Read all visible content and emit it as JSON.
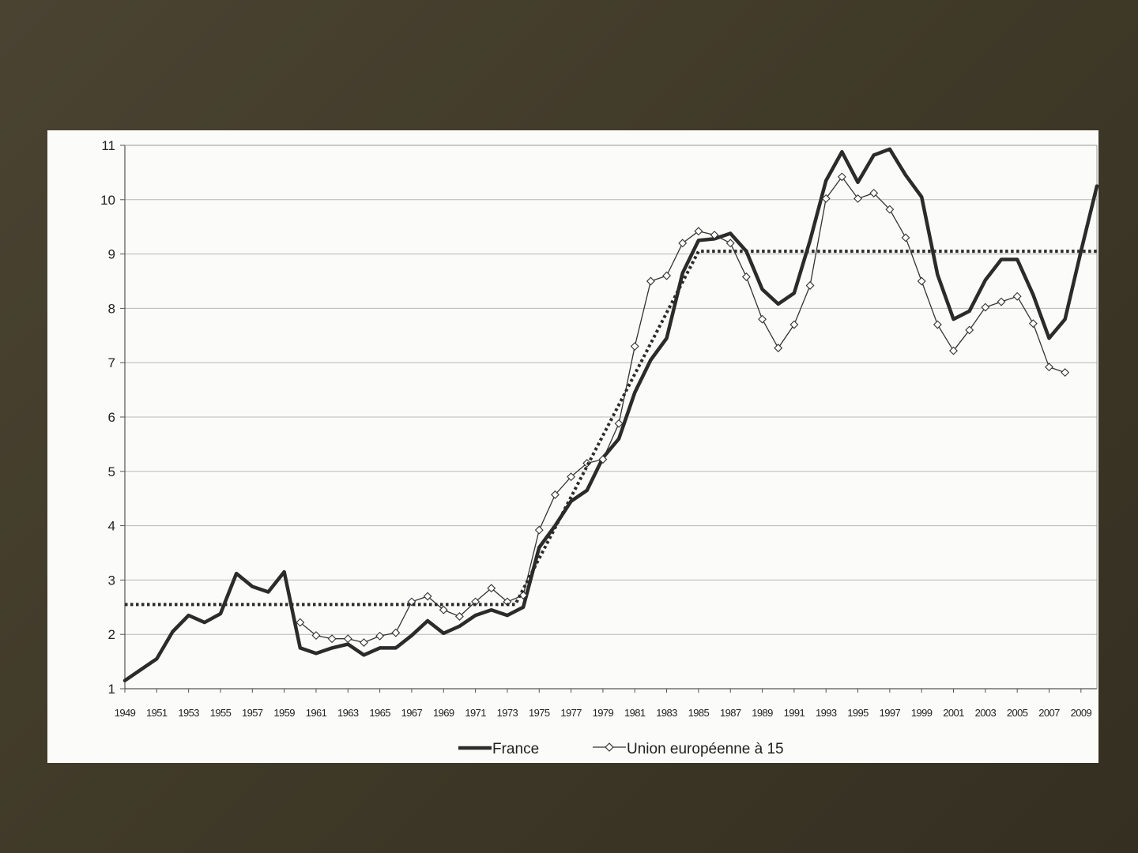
{
  "slide": {
    "background_colors": [
      "#4a4332",
      "#352f22"
    ]
  },
  "chart_data": {
    "type": "line",
    "title": "",
    "xlabel": "",
    "ylabel": "",
    "xlim": [
      1949,
      2010
    ],
    "ylim": [
      1,
      11
    ],
    "yticks": [
      1,
      2,
      3,
      4,
      5,
      6,
      7,
      8,
      9,
      10,
      11
    ],
    "ytick_labels": [
      "1",
      "2",
      "3",
      "4",
      "5",
      "6",
      "7",
      "8",
      "9",
      "10",
      "11"
    ],
    "xtick_labels": [
      "1949",
      "1951",
      "1953",
      "1955",
      "1957",
      "1959",
      "1961",
      "1963",
      "1965",
      "1967",
      "1969",
      "1971",
      "1973",
      "1975",
      "1977",
      "1979",
      "1981",
      "1983",
      "1985",
      "1987",
      "1989",
      "1991",
      "1993",
      "1995",
      "1997",
      "1999",
      "2001",
      "2003",
      "2005",
      "2007",
      "2009"
    ],
    "grid": "horizontal",
    "legend_position": "bottom-center",
    "series": [
      {
        "name": "France",
        "style": "thick-line",
        "color": "#2b2b2b",
        "x": [
          1949,
          1950,
          1951,
          1952,
          1953,
          1954,
          1955,
          1956,
          1957,
          1958,
          1959,
          1960,
          1961,
          1962,
          1963,
          1964,
          1965,
          1966,
          1967,
          1968,
          1969,
          1970,
          1971,
          1972,
          1973,
          1974,
          1975,
          1976,
          1977,
          1978,
          1979,
          1980,
          1981,
          1982,
          1983,
          1984,
          1985,
          1986,
          1987,
          1988,
          1989,
          1990,
          1991,
          1992,
          1993,
          1994,
          1995,
          1996,
          1997,
          1998,
          1999,
          2000,
          2001,
          2002,
          2003,
          2004,
          2005,
          2006,
          2007,
          2008,
          2009,
          2010
        ],
        "values": [
          1.15,
          1.35,
          1.55,
          2.05,
          2.35,
          2.22,
          2.38,
          3.12,
          2.88,
          2.78,
          3.15,
          1.75,
          1.65,
          1.75,
          1.82,
          1.62,
          1.75,
          1.75,
          1.98,
          2.25,
          2.02,
          2.15,
          2.35,
          2.45,
          2.35,
          2.5,
          3.6,
          4.0,
          4.45,
          4.65,
          5.25,
          5.6,
          6.45,
          7.05,
          7.45,
          8.65,
          9.25,
          9.28,
          9.38,
          9.05,
          8.35,
          8.08,
          8.28,
          9.25,
          10.35,
          10.88,
          10.32,
          10.82,
          10.93,
          10.45,
          10.05,
          8.62,
          7.8,
          7.95,
          8.52,
          8.9,
          8.9,
          8.25,
          7.45,
          7.8,
          9.05,
          10.25
        ]
      },
      {
        "name": "Union européenne à 15",
        "style": "thin-line-diamond-markers",
        "color": "#333333",
        "x": [
          1960,
          1961,
          1962,
          1963,
          1964,
          1965,
          1966,
          1967,
          1968,
          1969,
          1970,
          1971,
          1972,
          1973,
          1974,
          1975,
          1976,
          1977,
          1978,
          1979,
          1980,
          1981,
          1982,
          1983,
          1984,
          1985,
          1986,
          1987,
          1988,
          1989,
          1990,
          1991,
          1992,
          1993,
          1994,
          1995,
          1996,
          1997,
          1998,
          1999,
          2000,
          2001,
          2002,
          2003,
          2004,
          2005,
          2006,
          2007,
          2008
        ],
        "values": [
          2.22,
          1.98,
          1.92,
          1.92,
          1.85,
          1.97,
          2.03,
          2.6,
          2.7,
          2.45,
          2.33,
          2.6,
          2.85,
          2.6,
          2.72,
          3.92,
          4.57,
          4.9,
          5.15,
          5.22,
          5.88,
          7.3,
          8.5,
          8.6,
          9.2,
          9.42,
          9.35,
          9.2,
          8.58,
          7.8,
          7.27,
          7.7,
          8.42,
          10.02,
          10.42,
          10.02,
          10.12,
          9.82,
          9.3,
          8.5,
          7.7,
          7.22,
          7.6,
          8.02,
          8.12,
          8.22,
          7.72,
          6.92,
          6.82
        ]
      },
      {
        "name": "",
        "style": "dotted-trend",
        "color": "#2b2b2b",
        "x": [
          1949,
          1973.5,
          1985,
          2010
        ],
        "values": [
          2.55,
          2.55,
          9.05,
          9.05
        ]
      }
    ]
  },
  "legend": {
    "items": [
      {
        "label": "France",
        "marker": "thick-line"
      },
      {
        "label": "Union européenne à 15",
        "marker": "thin-line-diamond"
      }
    ]
  }
}
